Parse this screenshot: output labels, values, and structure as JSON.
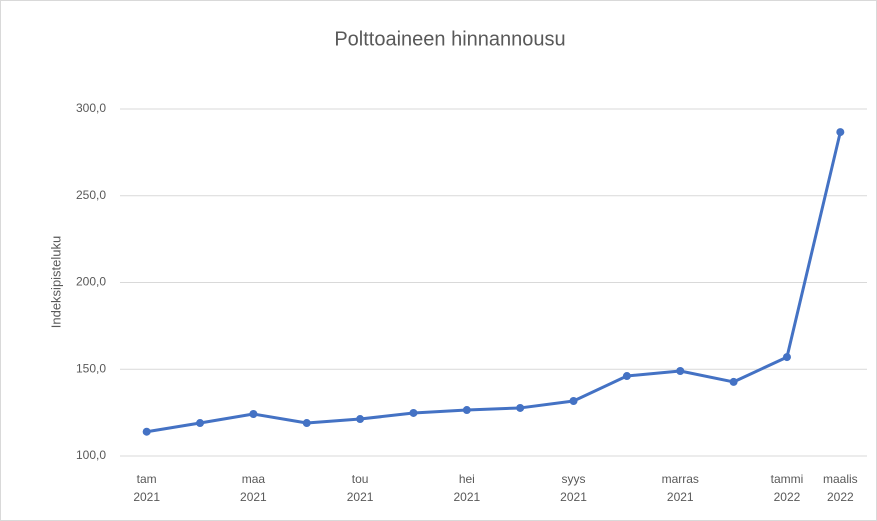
{
  "chart_data": {
    "type": "line",
    "title": "Polttoaineen hinnannousu",
    "y_label": "Indeksipisteluku",
    "categories": [
      [
        "tam",
        "2021"
      ],
      null,
      [
        "maa",
        "2021"
      ],
      null,
      [
        "tou",
        "2021"
      ],
      null,
      [
        "hei",
        "2021"
      ],
      null,
      [
        "syys",
        "2021"
      ],
      null,
      [
        "marras",
        "2021"
      ],
      null,
      [
        "tammi",
        "2022"
      ],
      [
        "maalis",
        "2022"
      ]
    ],
    "series": [
      {
        "name": "Indeksipisteluku",
        "color": "#4472c4",
        "values": [
          114,
          119,
          124.2,
          119,
          121.3,
          124.8,
          126.5,
          127.7,
          131.7,
          146.1,
          149,
          142.7,
          157,
          286.7
        ]
      }
    ],
    "ylim": [
      100,
      300
    ],
    "yticks": [
      {
        "value": 100,
        "label": "100,0"
      },
      {
        "value": 150,
        "label": "150,0"
      },
      {
        "value": 200,
        "label": "200,0"
      },
      {
        "value": 250,
        "label": "250,0"
      },
      {
        "value": 300,
        "label": "300,0"
      }
    ],
    "grid": true
  }
}
